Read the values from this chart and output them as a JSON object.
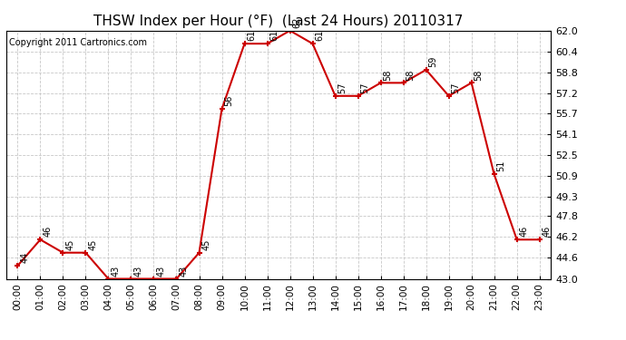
{
  "title": "THSW Index per Hour (°F)  (Last 24 Hours) 20110317",
  "copyright": "Copyright 2011 Cartronics.com",
  "hours": [
    "00:00",
    "01:00",
    "02:00",
    "03:00",
    "04:00",
    "05:00",
    "06:00",
    "07:00",
    "08:00",
    "09:00",
    "10:00",
    "11:00",
    "12:00",
    "13:00",
    "14:00",
    "15:00",
    "16:00",
    "17:00",
    "18:00",
    "19:00",
    "20:00",
    "21:00",
    "22:00",
    "23:00"
  ],
  "values": [
    44,
    46,
    45,
    45,
    43,
    43,
    43,
    43,
    45,
    56,
    61,
    61,
    62,
    61,
    57,
    57,
    58,
    58,
    59,
    57,
    58,
    51,
    46,
    46
  ],
  "ylim_min": 43.0,
  "ylim_max": 62.0,
  "yticks": [
    43.0,
    44.6,
    46.2,
    47.8,
    49.3,
    50.9,
    52.5,
    54.1,
    55.7,
    57.2,
    58.8,
    60.4,
    62.0
  ],
  "line_color": "#cc0000",
  "marker_color": "#cc0000",
  "bg_color": "#ffffff",
  "grid_color": "#c8c8c8",
  "title_fontsize": 11,
  "label_fontsize": 7.5,
  "annotation_fontsize": 7,
  "copyright_fontsize": 7
}
